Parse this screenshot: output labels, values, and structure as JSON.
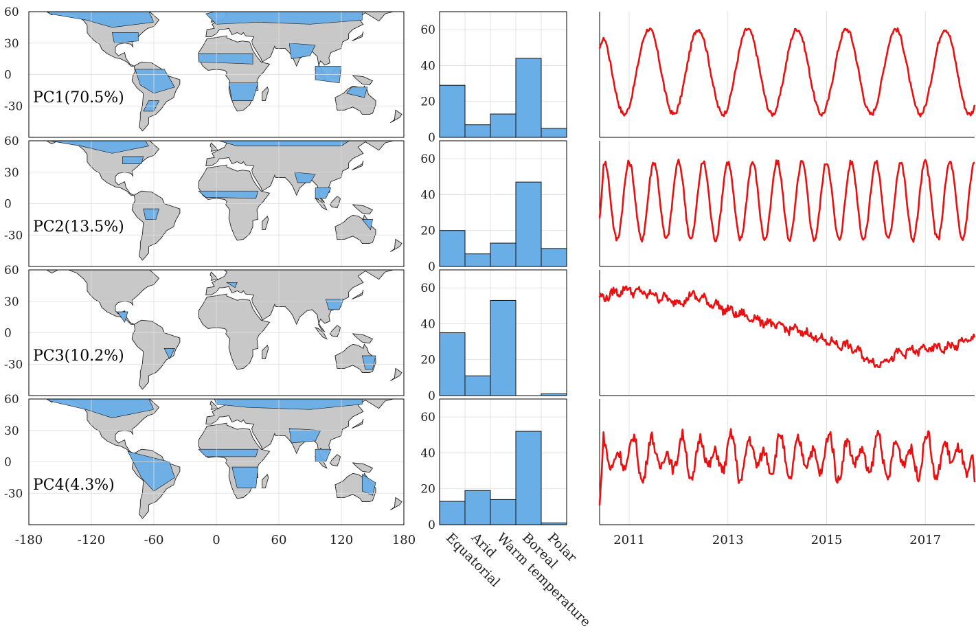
{
  "colors": {
    "land": "#c8c8c8",
    "highlight": "#6aaee8",
    "bar": "#6aaee8",
    "line": "#e81010",
    "grid": "#dcdcdc",
    "axis": "#000000"
  },
  "chart_data": [
    {
      "type": "map",
      "panels": [
        "PC1(70.5%)",
        "PC2(13.5%)",
        "PC3(10.2%)",
        "PC4(4.3%)"
      ],
      "xlim": [
        -180,
        180
      ],
      "ylim": [
        -60,
        60
      ],
      "xticks": [
        -180,
        -120,
        -60,
        0,
        60,
        120,
        180
      ],
      "yticks": [
        60,
        30,
        0,
        -30
      ],
      "grid": true
    },
    {
      "type": "bar",
      "categories": [
        "Equatorial",
        "Arid",
        "Warm temperature",
        "Boreal",
        "Polar"
      ],
      "series": [
        {
          "values": [
            29,
            7,
            13,
            44,
            5
          ]
        },
        {
          "values": [
            20,
            7,
            13,
            47,
            10
          ]
        },
        {
          "values": [
            35,
            11,
            53,
            0,
            1
          ]
        },
        {
          "values": [
            13,
            19,
            14,
            52,
            1
          ]
        }
      ],
      "ylim": [
        0,
        70
      ],
      "yticks": [
        0,
        20,
        40,
        60
      ],
      "grid": true
    },
    {
      "type": "line",
      "xlim": [
        2010.4,
        2018.0
      ],
      "xticks": [
        2011,
        2013,
        2015,
        2017
      ],
      "grid": true,
      "series": [
        {
          "kind": "annual",
          "period": 1.0,
          "min_year": 2010.9,
          "max_year": 2011.4,
          "mean": 34,
          "amplitude": 22,
          "start": 46,
          "end": 52
        },
        {
          "kind": "semiannual",
          "period": 0.5,
          "min_year": 2010.75,
          "max_year": 2011.0,
          "mean": 34,
          "amplitude": 20,
          "start": 25,
          "end": 28
        },
        {
          "kind": "trend",
          "x": [
            2010.4,
            2010.9,
            2011.5,
            2012.0,
            2012.3,
            2013.0,
            2013.5,
            2014.0,
            2014.5,
            2015.0,
            2015.5,
            2016.0,
            2016.5,
            2017.0,
            2017.5,
            2018.0
          ],
          "y": [
            50,
            55,
            52,
            48,
            52,
            44,
            40,
            36,
            33,
            28,
            25,
            16,
            22,
            24,
            25,
            30
          ]
        },
        {
          "kind": "noisy",
          "period": 0.33,
          "mean": 35,
          "amplitude": 13,
          "start": 10,
          "end": 22
        }
      ]
    }
  ]
}
